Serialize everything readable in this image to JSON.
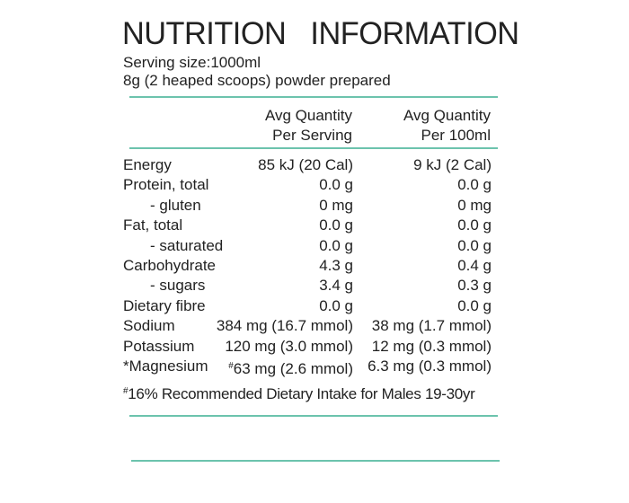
{
  "title": "NUTRITION   INFORMATION",
  "serving_size": "Serving size:1000ml",
  "preparation": "8g (2 heaped scoops) powder prepared",
  "columns": {
    "per_serving": [
      "Avg Quantity",
      "Per Serving"
    ],
    "per_100ml": [
      "Avg Quantity",
      "Per 100ml"
    ]
  },
  "rows": [
    {
      "label": "Energy",
      "serving": "85 kJ (20 Cal)",
      "per100": "9 kJ (2 Cal)"
    },
    {
      "label": "Protein, total",
      "serving": "0.0 g",
      "per100": "0.0 g"
    },
    {
      "label": "- gluten",
      "serving": "0 mg",
      "per100": "0 mg"
    },
    {
      "label": "Fat, total",
      "serving": "0.0 g",
      "per100": "0.0 g"
    },
    {
      "label": "- saturated",
      "serving": "0.0 g",
      "per100": "0.0 g"
    },
    {
      "label": "Carbohydrate",
      "serving": "4.3 g",
      "per100": "0.4 g"
    },
    {
      "label": "- sugars",
      "serving": "3.4 g",
      "per100": "0.3 g"
    },
    {
      "label": "Dietary fibre",
      "serving": "0.0 g",
      "per100": "0.0 g"
    },
    {
      "label": "Sodium",
      "serving": "384 mg (16.7 mmol)",
      "per100": "38 mg (1.7 mmol)"
    },
    {
      "label": "Potassium",
      "serving": "120 mg (3.0 mmol)",
      "per100": "12 mg (0.3 mmol)"
    },
    {
      "label": "*Magnesium",
      "serving_mark": "#",
      "serving": "63 mg (2.6 mmol)",
      "per100": "6.3 mg (0.3 mmol)"
    }
  ],
  "footnote": {
    "mark": "#",
    "text": "16% Recommended Dietary Intake for Males 19-30yr"
  },
  "accent_color": "#6cc3ad"
}
